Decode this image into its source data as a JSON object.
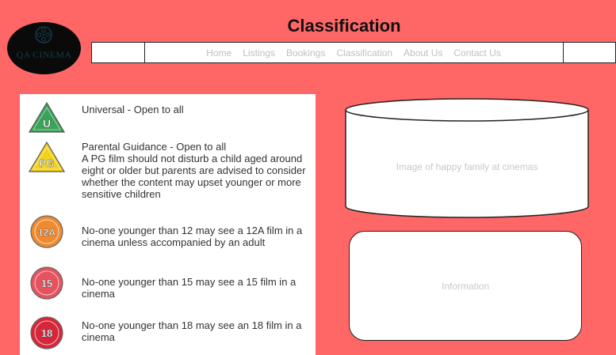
{
  "site": {
    "logo_text": "QA CINEMA",
    "page_title": "Classification"
  },
  "nav": {
    "items": [
      {
        "label": "Home",
        "name": "nav-home"
      },
      {
        "label": "Listings",
        "name": "nav-listings"
      },
      {
        "label": "Bookings",
        "name": "nav-bookings"
      },
      {
        "label": "Classification",
        "name": "nav-classification"
      },
      {
        "label": "About Us",
        "name": "nav-about-us"
      },
      {
        "label": "Contact Us",
        "name": "nav-contact-us"
      }
    ]
  },
  "ratings": [
    {
      "badge": "U",
      "text": "Universal - Open to all",
      "color": "#3aa35a",
      "shape": "triangle"
    },
    {
      "badge": "PG",
      "text": "Parental Guidance - Open to all\nA PG film should not disturb a child aged around eight or older but parents are advised to consider whether the content may upset younger or more sensitive children",
      "color": "#f2d21c",
      "shape": "triangle"
    },
    {
      "badge": "12A",
      "text": "No-one younger than 12 may see a 12A film in a cinema unless accompanied by an adult",
      "color": "#f08a2e",
      "shape": "circle"
    },
    {
      "badge": "15",
      "text": "No-one younger than 15 may see a 15 film in a cinema",
      "color": "#e7525e",
      "shape": "circle"
    },
    {
      "badge": "18",
      "text": "No-one younger than 18 may see an 18 film in a cinema",
      "color": "#d6263a",
      "shape": "circle"
    }
  ],
  "image_placeholder": {
    "label": "Image of happy family at cinemas"
  },
  "info_box": {
    "label": "Information"
  }
}
